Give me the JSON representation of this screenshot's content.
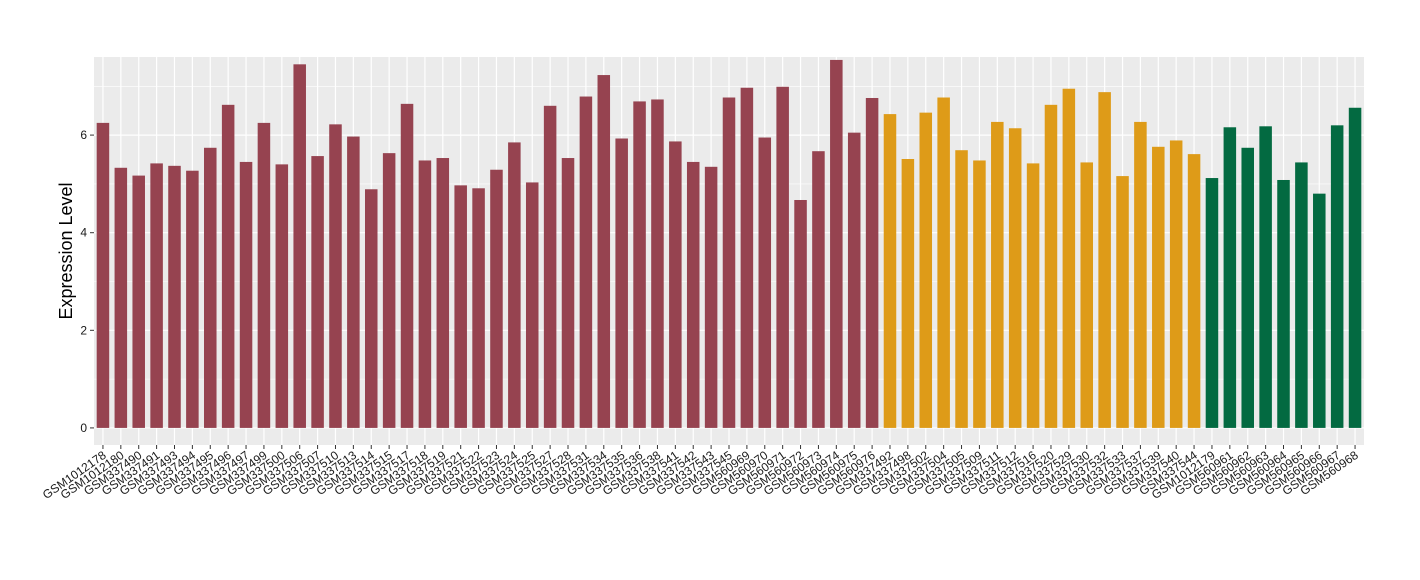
{
  "chart_data": {
    "type": "bar",
    "title": "",
    "xlabel": "",
    "ylabel": "Expression Level",
    "ylim": [
      -0.35,
      7.6
    ],
    "yticks": [
      0,
      2,
      4,
      6
    ],
    "grid": true,
    "legend": "none",
    "colors": {
      "background": "#EBEBEB",
      "gridline": "#FFFFFF",
      "group_1": "#964350",
      "group_2": "#DE9B18",
      "group_3": "#036A41"
    },
    "categories": [
      "GSM1012178",
      "GSM1012180",
      "GSM337490",
      "GSM337491",
      "GSM337493",
      "GSM337494",
      "GSM337495",
      "GSM337496",
      "GSM337497",
      "GSM337499",
      "GSM337500",
      "GSM337506",
      "GSM337507",
      "GSM337510",
      "GSM337513",
      "GSM337514",
      "GSM337515",
      "GSM337517",
      "GSM337518",
      "GSM337519",
      "GSM337521",
      "GSM337522",
      "GSM337523",
      "GSM337524",
      "GSM337525",
      "GSM337527",
      "GSM337528",
      "GSM337531",
      "GSM337534",
      "GSM337535",
      "GSM337536",
      "GSM337538",
      "GSM337541",
      "GSM337542",
      "GSM337543",
      "GSM337545",
      "GSM560969",
      "GSM560970",
      "GSM560971",
      "GSM560972",
      "GSM560973",
      "GSM560974",
      "GSM560975",
      "GSM560976",
      "GSM337492",
      "GSM337498",
      "GSM337502",
      "GSM337504",
      "GSM337505",
      "GSM337509",
      "GSM337511",
      "GSM337512",
      "GSM337516",
      "GSM337520",
      "GSM337529",
      "GSM337530",
      "GSM337532",
      "GSM337533",
      "GSM337537",
      "GSM337539",
      "GSM337540",
      "GSM337544",
      "GSM1012179",
      "GSM560961",
      "GSM560962",
      "GSM560963",
      "GSM560964",
      "GSM560965",
      "GSM560966",
      "GSM560967",
      "GSM560968"
    ],
    "values": [
      6.25,
      5.33,
      5.17,
      5.42,
      5.37,
      5.27,
      5.74,
      6.62,
      5.45,
      6.25,
      5.4,
      7.45,
      5.57,
      6.22,
      5.97,
      4.89,
      5.63,
      6.64,
      5.48,
      5.53,
      4.97,
      4.91,
      5.29,
      5.85,
      5.03,
      6.6,
      5.53,
      6.79,
      7.23,
      5.93,
      6.69,
      6.73,
      5.87,
      5.45,
      5.35,
      6.77,
      6.97,
      5.95,
      6.99,
      4.67,
      5.67,
      7.54,
      6.05,
      6.76,
      6.43,
      5.51,
      6.46,
      6.77,
      5.69,
      5.48,
      6.27,
      6.14,
      5.42,
      6.62,
      6.95,
      5.44,
      6.88,
      5.16,
      6.27,
      5.76,
      5.89,
      5.61,
      5.12,
      6.16,
      5.74,
      6.18,
      5.08,
      5.44,
      4.8,
      6.2,
      6.56
    ],
    "groups": [
      1,
      1,
      1,
      1,
      1,
      1,
      1,
      1,
      1,
      1,
      1,
      1,
      1,
      1,
      1,
      1,
      1,
      1,
      1,
      1,
      1,
      1,
      1,
      1,
      1,
      1,
      1,
      1,
      1,
      1,
      1,
      1,
      1,
      1,
      1,
      1,
      1,
      1,
      1,
      1,
      1,
      1,
      1,
      1,
      2,
      2,
      2,
      2,
      2,
      2,
      2,
      2,
      2,
      2,
      2,
      2,
      2,
      2,
      2,
      2,
      2,
      2,
      3,
      3,
      3,
      3,
      3,
      3,
      3,
      3,
      3
    ]
  }
}
